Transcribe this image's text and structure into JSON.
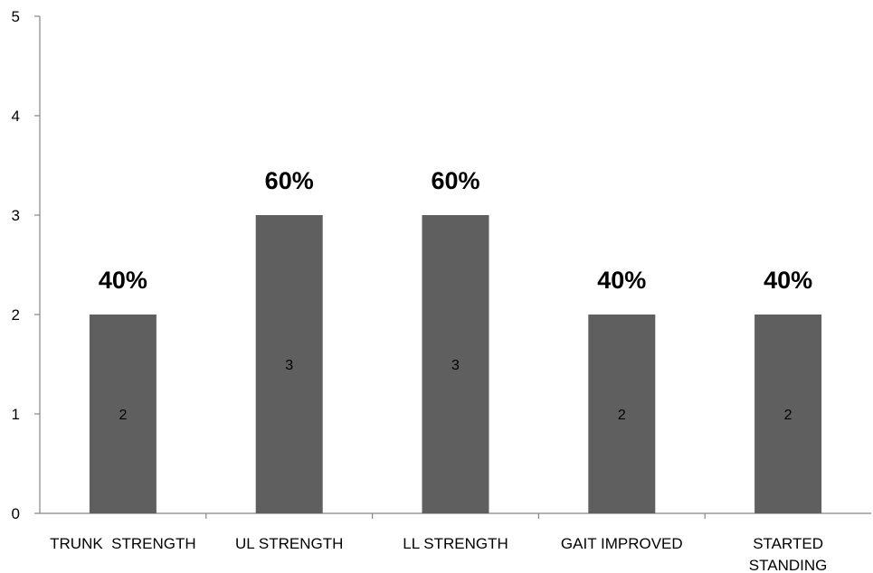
{
  "chart_data": {
    "type": "bar",
    "categories": [
      [
        "TRUNK  STRENGTH"
      ],
      [
        "UL STRENGTH"
      ],
      [
        "LL STRENGTH"
      ],
      [
        "GAIT IMPROVED"
      ],
      [
        "STARTED",
        "STANDING"
      ]
    ],
    "values": [
      2,
      3,
      3,
      2,
      2
    ],
    "data_labels": [
      "2",
      "3",
      "3",
      "2",
      "2"
    ],
    "annotations": [
      "40%",
      "60%",
      "60%",
      "40%",
      "40%"
    ],
    "ylim": [
      0,
      5
    ],
    "yticks": [
      "0",
      "1",
      "2",
      "3",
      "4",
      "5"
    ],
    "grid": false,
    "bar_color": "#5f5f5f",
    "axis_color": "#868686"
  }
}
